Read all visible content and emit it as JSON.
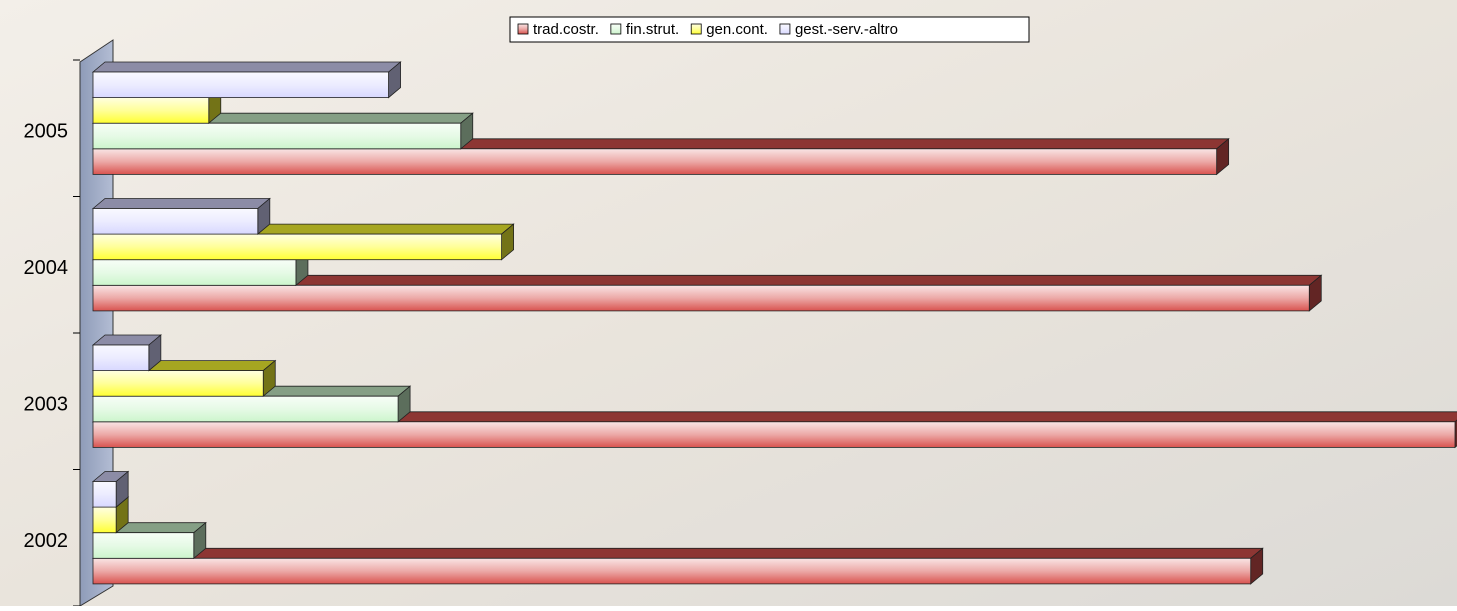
{
  "chart_data": {
    "type": "bar3d_horizontal",
    "categories": [
      "2002",
      "2003",
      "2004",
      "2005"
    ],
    "series": [
      {
        "name": "trad.costr.",
        "color": "#d9534f",
        "values": [
          85,
          100,
          89.3,
          82.5
        ]
      },
      {
        "name": "fin.strut.",
        "color": "#ccf5cc",
        "values": [
          7.4,
          22.4,
          14.9,
          27
        ]
      },
      {
        "name": "gen.cont.",
        "color": "#ffff33",
        "values": [
          1.7,
          12.5,
          30,
          8.5
        ]
      },
      {
        "name": "gest.-serv.-altro",
        "color": "#d8d8ff",
        "values": [
          1.7,
          4.1,
          12.1,
          21.7
        ]
      }
    ],
    "xlim": [
      0,
      100
    ]
  }
}
